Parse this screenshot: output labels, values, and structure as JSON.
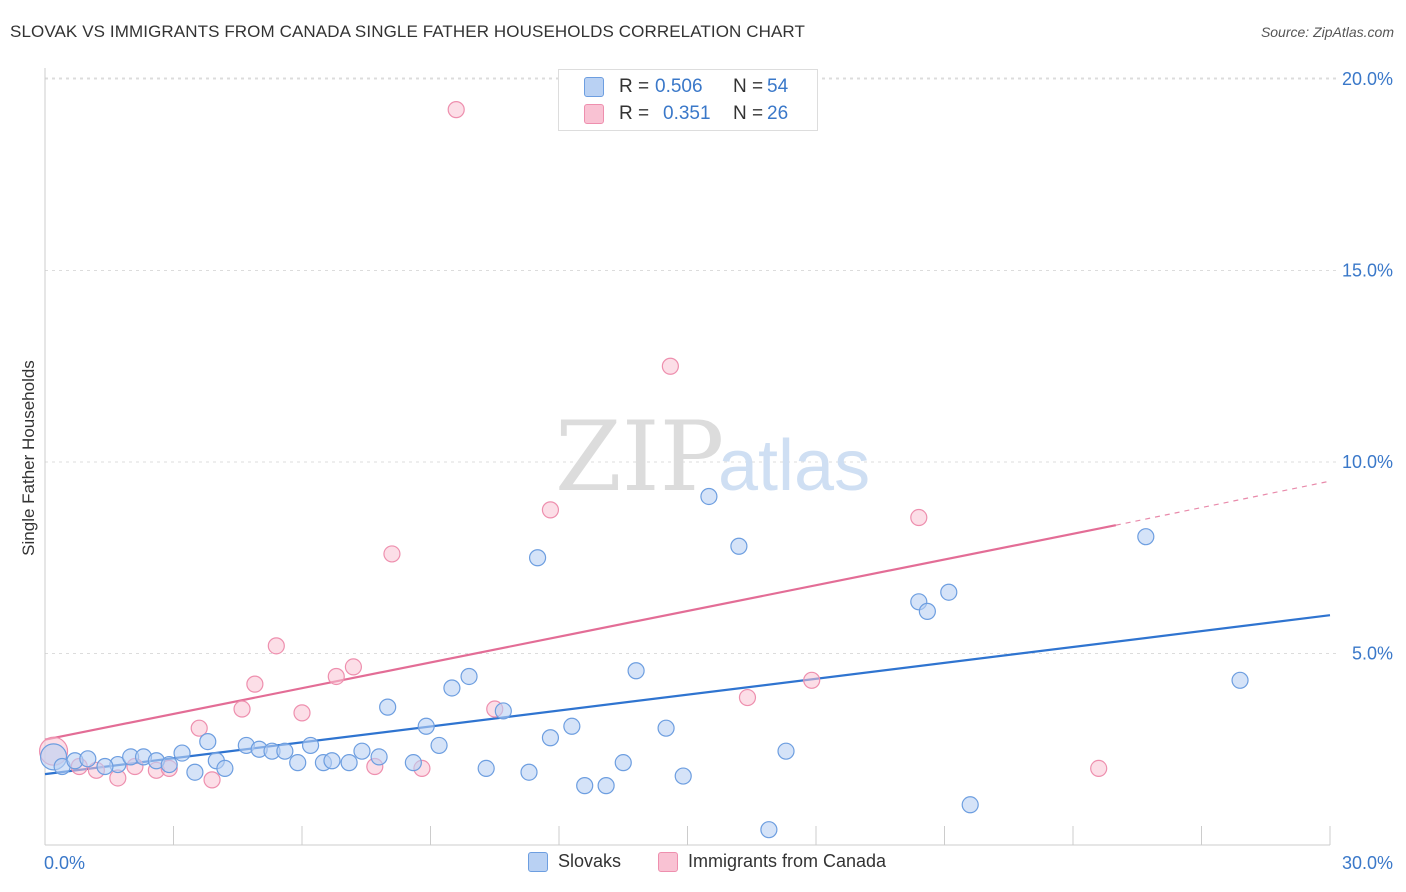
{
  "header": {
    "title": "SLOVAK VS IMMIGRANTS FROM CANADA SINGLE FATHER HOUSEHOLDS CORRELATION CHART",
    "source": "Source: ZipAtlas.com"
  },
  "colors": {
    "slovaks_fill": "#b9d1f3",
    "slovaks_stroke": "#6d9ee0",
    "slovaks_line": "#2f74d0",
    "canada_fill": "#f9c2d3",
    "canada_stroke": "#ee8fae",
    "canada_line": "#e36d96",
    "tick_label": "#3a78c9"
  },
  "watermark": {
    "part1": "ZIP",
    "part2": "atlas"
  },
  "legend_stats": {
    "rows": [
      {
        "r_label": "R =",
        "r_value": "0.506",
        "n_label": "N =",
        "n_value": "54"
      },
      {
        "r_label": "R =",
        "r_value": "0.351",
        "n_label": "N =",
        "n_value": "26"
      }
    ]
  },
  "legend_bottom": {
    "items": [
      "Slovaks",
      "Immigrants from Canada"
    ]
  },
  "chart_data": {
    "type": "scatter",
    "title": "SLOVAK VS IMMIGRANTS FROM CANADA SINGLE FATHER HOUSEHOLDS CORRELATION CHART",
    "xlabel": "",
    "ylabel": "Single Father Households",
    "xlim": [
      0,
      30
    ],
    "ylim": [
      0,
      20.5
    ],
    "x_tick_labels": [
      "0.0%",
      "30.0%"
    ],
    "y_ticks": [
      5,
      10,
      15,
      20
    ],
    "y_tick_labels": [
      "5.0%",
      "10.0%",
      "15.0%",
      "20.0%"
    ],
    "grid": true,
    "series": [
      {
        "name": "Slovaks",
        "r": 0.506,
        "n": 54,
        "trend": {
          "x0": 0,
          "y0": 1.85,
          "x1": 30,
          "y1": 6.0
        },
        "points": [
          [
            0.2,
            2.3
          ],
          [
            0.4,
            2.05
          ],
          [
            0.7,
            2.2
          ],
          [
            1.0,
            2.25
          ],
          [
            1.7,
            2.1
          ],
          [
            1.4,
            2.05
          ],
          [
            2.0,
            2.3
          ],
          [
            2.3,
            2.3
          ],
          [
            2.6,
            2.2
          ],
          [
            2.9,
            2.1
          ],
          [
            3.2,
            2.4
          ],
          [
            3.5,
            1.9
          ],
          [
            3.8,
            2.7
          ],
          [
            4.0,
            2.2
          ],
          [
            4.2,
            2.0
          ],
          [
            4.7,
            2.6
          ],
          [
            5.0,
            2.5
          ],
          [
            5.3,
            2.45
          ],
          [
            5.6,
            2.45
          ],
          [
            5.9,
            2.15
          ],
          [
            6.2,
            2.6
          ],
          [
            6.5,
            2.15
          ],
          [
            6.7,
            2.2
          ],
          [
            7.1,
            2.15
          ],
          [
            7.4,
            2.45
          ],
          [
            7.8,
            2.3
          ],
          [
            8.0,
            3.6
          ],
          [
            8.6,
            2.15
          ],
          [
            8.9,
            3.1
          ],
          [
            9.2,
            2.6
          ],
          [
            9.5,
            4.1
          ],
          [
            9.9,
            4.4
          ],
          [
            10.3,
            2.0
          ],
          [
            10.7,
            3.5
          ],
          [
            11.3,
            1.9
          ],
          [
            11.5,
            7.5
          ],
          [
            11.8,
            2.8
          ],
          [
            12.3,
            3.1
          ],
          [
            12.6,
            1.55
          ],
          [
            13.1,
            1.55
          ],
          [
            13.5,
            2.15
          ],
          [
            13.8,
            4.55
          ],
          [
            14.5,
            3.05
          ],
          [
            14.9,
            1.8
          ],
          [
            15.5,
            9.1
          ],
          [
            16.2,
            7.8
          ],
          [
            16.9,
            0.4
          ],
          [
            17.3,
            2.45
          ],
          [
            20.4,
            6.35
          ],
          [
            20.6,
            6.1
          ],
          [
            21.1,
            6.6
          ],
          [
            21.6,
            1.05
          ],
          [
            25.7,
            8.05
          ],
          [
            27.9,
            4.3
          ]
        ]
      },
      {
        "name": "Immigrants from Canada",
        "r": 0.351,
        "n": 26,
        "trend": {
          "x0": 0,
          "y0": 2.75,
          "x1": 25.0,
          "y1": 8.35
        },
        "trend_dashed": {
          "x0": 25.0,
          "y0": 8.35,
          "x1": 30,
          "y1": 9.5
        },
        "points": [
          [
            0.2,
            2.45
          ],
          [
            0.8,
            2.05
          ],
          [
            1.2,
            1.95
          ],
          [
            1.7,
            1.75
          ],
          [
            2.1,
            2.05
          ],
          [
            2.6,
            1.95
          ],
          [
            2.9,
            2.0
          ],
          [
            3.6,
            3.05
          ],
          [
            3.9,
            1.7
          ],
          [
            4.6,
            3.55
          ],
          [
            4.9,
            4.2
          ],
          [
            5.4,
            5.2
          ],
          [
            6.0,
            3.45
          ],
          [
            6.8,
            4.4
          ],
          [
            7.2,
            4.65
          ],
          [
            7.7,
            2.05
          ],
          [
            8.1,
            7.6
          ],
          [
            8.8,
            2.0
          ],
          [
            9.6,
            19.2
          ],
          [
            10.5,
            3.55
          ],
          [
            11.8,
            8.75
          ],
          [
            14.6,
            12.5
          ],
          [
            16.4,
            3.85
          ],
          [
            17.9,
            4.3
          ],
          [
            20.4,
            8.55
          ],
          [
            24.6,
            2.0
          ]
        ]
      }
    ]
  }
}
